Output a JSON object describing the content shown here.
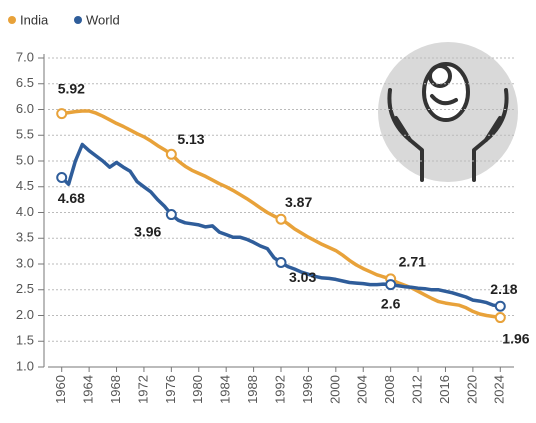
{
  "chart_data": {
    "type": "line",
    "x": [
      1960,
      1961,
      1962,
      1963,
      1964,
      1965,
      1966,
      1967,
      1968,
      1969,
      1970,
      1971,
      1972,
      1973,
      1974,
      1975,
      1976,
      1977,
      1978,
      1979,
      1980,
      1981,
      1982,
      1983,
      1984,
      1985,
      1986,
      1987,
      1988,
      1989,
      1990,
      1991,
      1992,
      1993,
      1994,
      1995,
      1996,
      1997,
      1998,
      1999,
      2000,
      2001,
      2002,
      2003,
      2004,
      2005,
      2006,
      2007,
      2008,
      2009,
      2010,
      2011,
      2012,
      2013,
      2014,
      2015,
      2016,
      2017,
      2018,
      2019,
      2020,
      2021,
      2022,
      2023,
      2024
    ],
    "series": [
      {
        "name": "India",
        "color": "#e8a23a",
        "values": [
          5.92,
          5.94,
          5.96,
          5.97,
          5.97,
          5.93,
          5.87,
          5.8,
          5.73,
          5.67,
          5.6,
          5.53,
          5.47,
          5.39,
          5.3,
          5.22,
          5.13,
          5.0,
          4.9,
          4.82,
          4.76,
          4.7,
          4.63,
          4.56,
          4.5,
          4.43,
          4.35,
          4.27,
          4.18,
          4.09,
          4.0,
          3.93,
          3.87,
          3.78,
          3.68,
          3.6,
          3.52,
          3.45,
          3.38,
          3.32,
          3.26,
          3.17,
          3.07,
          2.98,
          2.91,
          2.85,
          2.79,
          2.75,
          2.71,
          2.64,
          2.59,
          2.54,
          2.47,
          2.4,
          2.33,
          2.27,
          2.24,
          2.22,
          2.2,
          2.15,
          2.08,
          2.03,
          2.0,
          1.98,
          1.96
        ]
      },
      {
        "name": "World",
        "color": "#2f5d9a",
        "values": [
          4.68,
          4.55,
          5.0,
          5.32,
          5.2,
          5.1,
          5.0,
          4.88,
          4.97,
          4.88,
          4.8,
          4.6,
          4.5,
          4.4,
          4.25,
          4.12,
          3.96,
          3.85,
          3.8,
          3.78,
          3.76,
          3.72,
          3.74,
          3.62,
          3.57,
          3.52,
          3.52,
          3.48,
          3.42,
          3.35,
          3.3,
          3.12,
          3.03,
          2.95,
          2.9,
          2.84,
          2.8,
          2.76,
          2.73,
          2.72,
          2.7,
          2.67,
          2.64,
          2.63,
          2.62,
          2.6,
          2.6,
          2.61,
          2.6,
          2.58,
          2.56,
          2.55,
          2.53,
          2.52,
          2.5,
          2.5,
          2.47,
          2.44,
          2.4,
          2.36,
          2.3,
          2.28,
          2.25,
          2.2,
          2.18
        ]
      }
    ],
    "xlim": [
      1958,
      2026
    ],
    "xticks": [
      1960,
      1964,
      1968,
      1972,
      1976,
      1980,
      1984,
      1988,
      1992,
      1996,
      2000,
      2004,
      2008,
      2012,
      2016,
      2020,
      2024
    ],
    "ylim": [
      1,
      7
    ],
    "yticks": [
      {
        "value": 1,
        "label": "1.0"
      },
      1.5,
      {
        "value": 2,
        "label": "2.0"
      },
      2.5,
      {
        "value": 3,
        "label": "3.0"
      },
      3.5,
      {
        "value": 4,
        "label": "4.0"
      },
      4.5,
      {
        "value": 5,
        "label": "5.0"
      },
      5.5,
      {
        "value": 6,
        "label": "6.0"
      },
      6.5,
      {
        "value": 7,
        "label": "7.0"
      }
    ],
    "grid": true
  }
}
